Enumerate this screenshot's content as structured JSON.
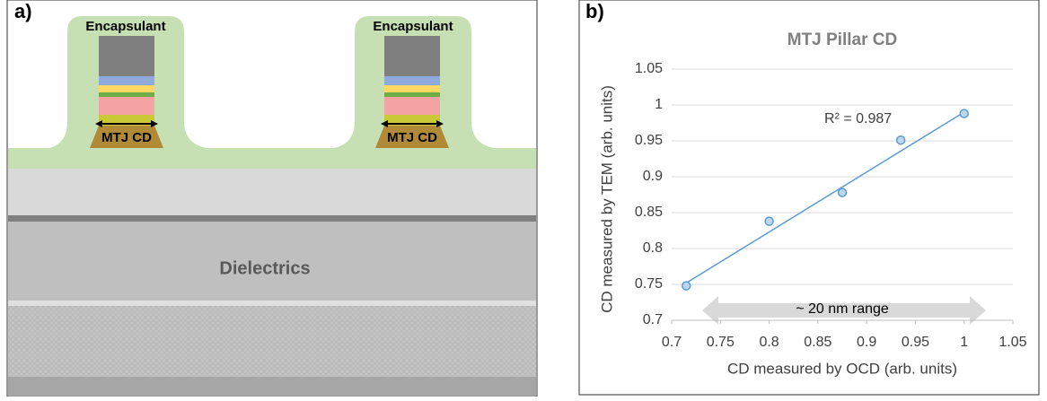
{
  "panel_a": {
    "label": "a)",
    "encapsulant_labels": [
      "Encapsulant",
      "Encapsulant"
    ],
    "cd_labels": [
      "MTJ CD",
      "MTJ CD"
    ],
    "dielectrics_label": "Dielectrics"
  },
  "chart_data": {
    "type": "scatter",
    "panel_label": "b)",
    "title": "MTJ Pillar CD",
    "x_label": "CD measured by OCD (arb. units)",
    "y_label": "CD measured by TEM (arb. units)",
    "x": [
      0.715,
      0.8,
      0.875,
      0.935,
      1.0
    ],
    "values": [
      0.748,
      0.838,
      0.878,
      0.951,
      0.988
    ],
    "color": "#5b9bd5",
    "trendline": {
      "x": [
        0.715,
        1.0
      ],
      "values": [
        0.752,
        0.99
      ],
      "label": "R² = 0.987"
    },
    "range_annotation": "~ 20 nm range",
    "xlim": [
      0.7,
      1.05
    ],
    "xticks": [
      0.7,
      0.75,
      0.8,
      0.85,
      0.9,
      0.95,
      1,
      1.05
    ],
    "ylim": [
      0.7,
      1.05
    ],
    "yticks": [
      0.7,
      0.75,
      0.8,
      0.85,
      0.9,
      0.95,
      1,
      1.05
    ],
    "grid": true
  }
}
